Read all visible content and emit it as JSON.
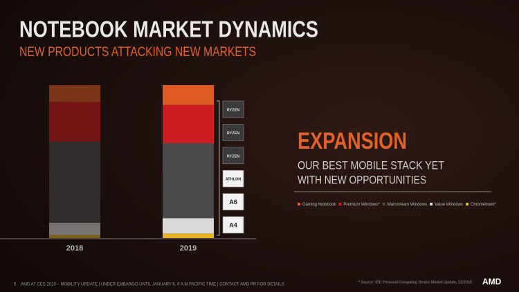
{
  "chart_data": {
    "type": "stacked_bar",
    "title": "NOTEBOOK MARKET DYNAMICS",
    "subtitle": "NEW PRODUCTS ATTACKING NEW MARKETS",
    "categories": [
      "2018",
      "2019"
    ],
    "series": [
      {
        "name": "Chromebook*",
        "color": "#e6b422",
        "values": [
          2,
          3
        ]
      },
      {
        "name": "Value Windows",
        "color": "#d9d9d9",
        "values": [
          8,
          10
        ]
      },
      {
        "name": "Mainstream Windows",
        "color": "#4a4a4c",
        "values": [
          53,
          49
        ]
      },
      {
        "name": "Premium Windows*",
        "color": "#cc1c1f",
        "values": [
          26,
          25
        ]
      },
      {
        "name": "Gaming Notebook",
        "color": "#dd5a22",
        "values": [
          11,
          13
        ]
      }
    ],
    "legend_order": [
      4,
      3,
      2,
      1,
      0
    ],
    "badges": [
      "RYZEN",
      "RYZEN",
      "RYZEN",
      "ATHLON",
      "A6",
      "A4"
    ],
    "headline": "EXPANSION",
    "tagline": [
      "OUR BEST MOBILE STACK YET",
      "WITH NEW OPPORTUNITIES"
    ],
    "footer": "AMD AT CES 2019 – MOBILITY UPDATE  |  UNDER EMBARGO UNTIL JANUARY 6, 9 A.M PACIFIC TIME  |  CONTACT AMD PR FOR DETAILS",
    "page_number": "5",
    "source": "* Source: IDC Personal Computing Device Market Update, 12/2018",
    "logo": "AMD"
  }
}
